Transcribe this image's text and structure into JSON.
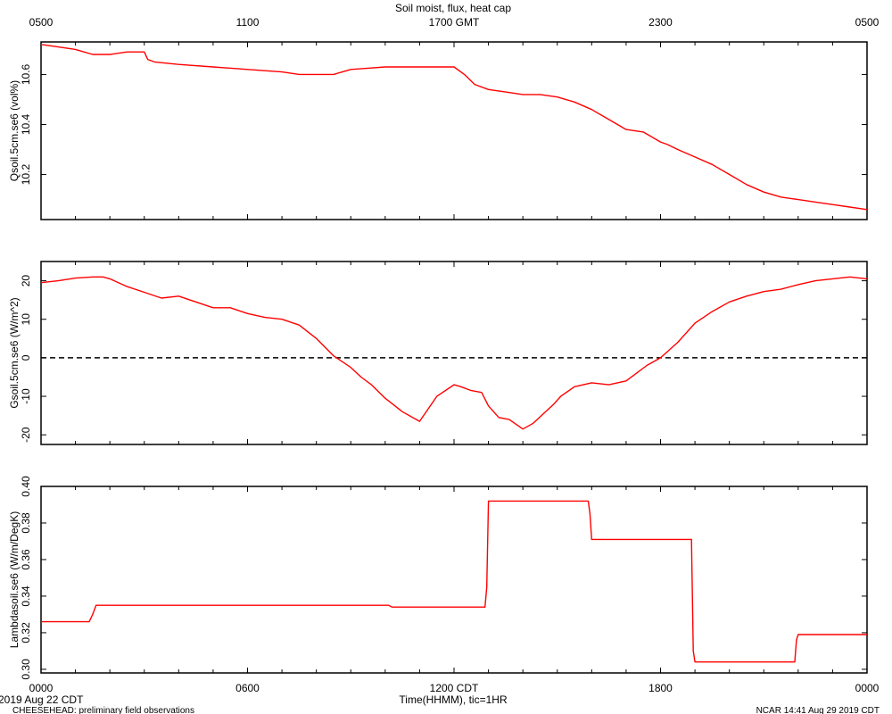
{
  "header": {
    "title": "Soil moist, flux, heat cap",
    "top_ticks": [
      "0500",
      "1100",
      "1700 GMT",
      "2300",
      "0500"
    ]
  },
  "footer": {
    "date_label": "2019 Aug 22 CDT",
    "project_label": "CHEESEHEAD: preliminary field observations",
    "stamp_label": "NCAR 14:41 Aug 29 2019 CDT",
    "bottom_ticks": [
      "0000",
      "0600",
      "1200 CDT",
      "1800",
      "0000"
    ],
    "xlabel": "Time(HHMM), tic=1HR"
  },
  "colors": {
    "series": "#ff0000",
    "axis": "#000000",
    "zero_line": "#000000"
  },
  "chart_data": [
    {
      "type": "line",
      "ylabel": "Qsoil.5cm.se6 (vol%)",
      "xlim": [
        0,
        24
      ],
      "ylim": [
        10.02,
        10.73
      ],
      "yticks": [
        10.2,
        10.4,
        10.6
      ],
      "ytick_labels": [
        "10.2",
        "10.4",
        "10.6"
      ],
      "zero_line": false,
      "series": [
        {
          "x": [
            0,
            0.5,
            1,
            1.5,
            2,
            2.5,
            3,
            3.1,
            3.3,
            4,
            5,
            6,
            7,
            7.5,
            8,
            8.5,
            9,
            9.5,
            10,
            10.5,
            11,
            11.5,
            12,
            12.3,
            12.6,
            13,
            13.5,
            14,
            14.5,
            15,
            15.5,
            16,
            16.5,
            17,
            17.5,
            18,
            18.2,
            18.5,
            19,
            19.5,
            20,
            20.5,
            21,
            21.5,
            22,
            22.5,
            23,
            23.5,
            24
          ],
          "y": [
            10.72,
            10.71,
            10.7,
            10.68,
            10.68,
            10.69,
            10.69,
            10.66,
            10.65,
            10.64,
            10.63,
            10.62,
            10.61,
            10.6,
            10.6,
            10.6,
            10.62,
            10.625,
            10.63,
            10.63,
            10.63,
            10.63,
            10.63,
            10.6,
            10.56,
            10.54,
            10.53,
            10.52,
            10.52,
            10.51,
            10.49,
            10.46,
            10.42,
            10.38,
            10.37,
            10.33,
            10.32,
            10.3,
            10.27,
            10.24,
            10.2,
            10.16,
            10.13,
            10.11,
            10.1,
            10.09,
            10.08,
            10.07,
            10.06
          ]
        }
      ]
    },
    {
      "type": "line",
      "ylabel": "Gsoil.5cm.se6 (W/m^2)",
      "xlim": [
        0,
        24
      ],
      "ylim": [
        -22.5,
        25
      ],
      "yticks": [
        -20,
        -10,
        0,
        10,
        20
      ],
      "ytick_labels": [
        "-20",
        "-10",
        "0",
        "10",
        "20"
      ],
      "zero_line": true,
      "series": [
        {
          "x": [
            0,
            0.5,
            1,
            1.5,
            1.8,
            2,
            2.5,
            3,
            3.5,
            4,
            4.5,
            5,
            5.5,
            6,
            6.5,
            7,
            7.5,
            8,
            8.5,
            9,
            9.3,
            9.6,
            10,
            10.5,
            11,
            11.5,
            12,
            12.2,
            12.5,
            12.8,
            13,
            13.3,
            13.6,
            14,
            14.3,
            14.6,
            14.9,
            15.1,
            15.5,
            16,
            16.5,
            17,
            17.3,
            17.6,
            18,
            18.5,
            19,
            19.5,
            20,
            20.5,
            21,
            21.5,
            22,
            22.5,
            23,
            23.5,
            24
          ],
          "y": [
            19.5,
            20,
            20.7,
            21,
            21,
            20.5,
            18.5,
            17,
            15.5,
            16,
            14.5,
            13,
            13,
            11.5,
            10.5,
            10,
            8.5,
            5,
            0.5,
            -2.5,
            -5,
            -7,
            -10.5,
            -14,
            -16.5,
            -10,
            -7,
            -7.5,
            -8.5,
            -9,
            -12.5,
            -15.5,
            -16,
            -18.5,
            -17,
            -14.5,
            -12,
            -10,
            -7.5,
            -6.5,
            -7,
            -6,
            -4,
            -2,
            0,
            4,
            9,
            12,
            14.5,
            16,
            17.2,
            17.8,
            19,
            20,
            20.5,
            21,
            20.5
          ]
        }
      ]
    },
    {
      "type": "line",
      "ylabel": "Lambdasoil.se6 (W/m/DegK)",
      "xlim": [
        0,
        24
      ],
      "ylim": [
        0.298,
        0.4
      ],
      "yticks": [
        0.3,
        0.32,
        0.34,
        0.36,
        0.38,
        0.4
      ],
      "ytick_labels": [
        "0.30",
        "0.32",
        "0.34",
        "0.36",
        "0.38",
        "0.40"
      ],
      "zero_line": false,
      "series": [
        {
          "x": [
            0,
            1.4,
            1.5,
            1.6,
            2,
            10,
            10.1,
            10.2,
            11,
            12,
            12.9,
            12.95,
            13,
            13.05,
            14,
            15,
            15.9,
            15.95,
            16,
            16.05,
            17,
            18,
            18.9,
            18.95,
            19,
            19.05,
            20,
            21,
            21.9,
            21.95,
            22,
            22.05,
            23,
            24
          ],
          "y": [
            0.326,
            0.326,
            0.33,
            0.335,
            0.335,
            0.335,
            0.335,
            0.334,
            0.334,
            0.334,
            0.334,
            0.345,
            0.392,
            0.392,
            0.392,
            0.392,
            0.392,
            0.385,
            0.371,
            0.371,
            0.371,
            0.371,
            0.371,
            0.31,
            0.304,
            0.304,
            0.304,
            0.304,
            0.304,
            0.316,
            0.319,
            0.319,
            0.319,
            0.319
          ]
        }
      ]
    }
  ]
}
